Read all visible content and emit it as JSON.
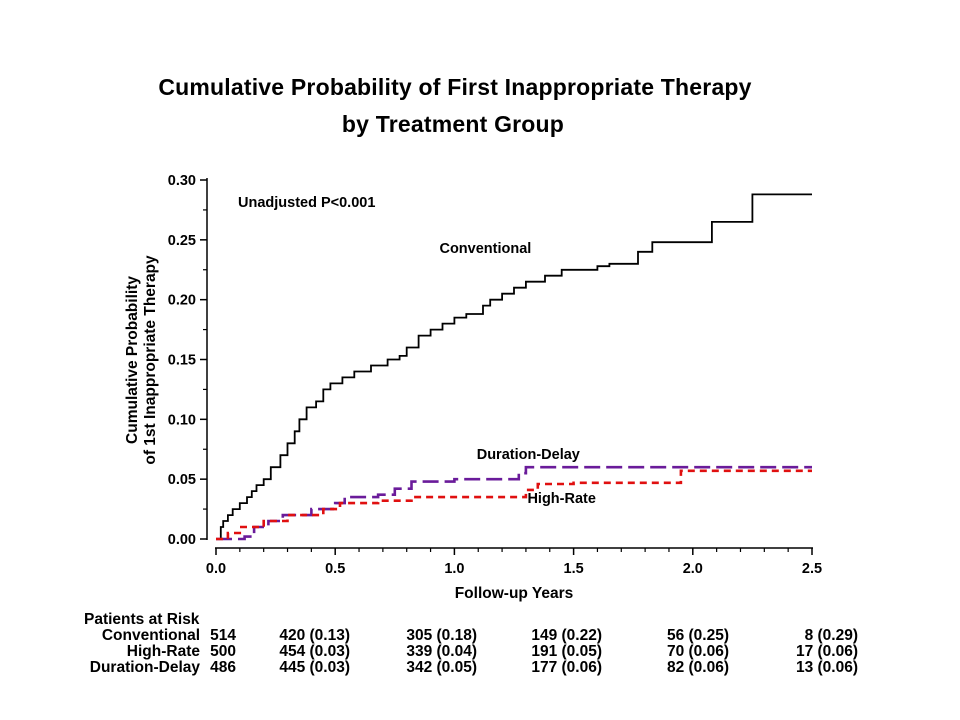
{
  "title_line1": "Cumulative Probability of First Inappropriate Therapy",
  "title_line2": "by Treatment Group",
  "chart_data": {
    "type": "line",
    "step": true,
    "xlabel": "Follow-up Years",
    "ylabel": [
      "Cumulative Probability",
      "of 1st Inappropriate Therapy"
    ],
    "xlim": [
      0.0,
      2.5
    ],
    "ylim": [
      0.0,
      0.3
    ],
    "xticks": [
      "0.0",
      "0.5",
      "1.0",
      "1.5",
      "2.0",
      "2.5"
    ],
    "yticks": [
      "0.00",
      "0.05",
      "0.10",
      "0.15",
      "0.20",
      "0.25",
      "0.30"
    ],
    "grid": false,
    "annotation": "Unadjusted P<0.001",
    "series": [
      {
        "name": "Conventional",
        "color": "#000000",
        "dash": "solid",
        "label_at": [
          1.13,
          0.239
        ],
        "points": [
          [
            0,
            0
          ],
          [
            0.02,
            0.01
          ],
          [
            0.03,
            0.015
          ],
          [
            0.05,
            0.02
          ],
          [
            0.07,
            0.025
          ],
          [
            0.1,
            0.03
          ],
          [
            0.13,
            0.035
          ],
          [
            0.15,
            0.04
          ],
          [
            0.17,
            0.045
          ],
          [
            0.2,
            0.05
          ],
          [
            0.23,
            0.06
          ],
          [
            0.27,
            0.07
          ],
          [
            0.3,
            0.08
          ],
          [
            0.33,
            0.09
          ],
          [
            0.35,
            0.1
          ],
          [
            0.38,
            0.11
          ],
          [
            0.42,
            0.115
          ],
          [
            0.45,
            0.125
          ],
          [
            0.48,
            0.13
          ],
          [
            0.53,
            0.135
          ],
          [
            0.58,
            0.14
          ],
          [
            0.65,
            0.145
          ],
          [
            0.72,
            0.15
          ],
          [
            0.77,
            0.153
          ],
          [
            0.8,
            0.16
          ],
          [
            0.85,
            0.17
          ],
          [
            0.9,
            0.175
          ],
          [
            0.95,
            0.18
          ],
          [
            1.0,
            0.185
          ],
          [
            1.05,
            0.188
          ],
          [
            1.12,
            0.195
          ],
          [
            1.15,
            0.2
          ],
          [
            1.2,
            0.205
          ],
          [
            1.25,
            0.21
          ],
          [
            1.3,
            0.215
          ],
          [
            1.38,
            0.22
          ],
          [
            1.45,
            0.225
          ],
          [
            1.6,
            0.228
          ],
          [
            1.65,
            0.23
          ],
          [
            1.77,
            0.24
          ],
          [
            1.83,
            0.248
          ],
          [
            2.08,
            0.265
          ],
          [
            2.25,
            0.288
          ],
          [
            2.5,
            0.288
          ]
        ]
      },
      {
        "name": "Duration-Delay",
        "color": "#6a1b9a",
        "dash": "long",
        "label_at": [
          1.31,
          0.067
        ],
        "points": [
          [
            0,
            0
          ],
          [
            0.12,
            0.002
          ],
          [
            0.16,
            0.01
          ],
          [
            0.22,
            0.015
          ],
          [
            0.28,
            0.02
          ],
          [
            0.4,
            0.025
          ],
          [
            0.5,
            0.03
          ],
          [
            0.54,
            0.035
          ],
          [
            0.68,
            0.037
          ],
          [
            0.75,
            0.042
          ],
          [
            0.82,
            0.048
          ],
          [
            1.0,
            0.05
          ],
          [
            1.27,
            0.055
          ],
          [
            1.3,
            0.06
          ],
          [
            2.5,
            0.06
          ]
        ]
      },
      {
        "name": "High-Rate",
        "color": "#e01010",
        "dash": "short",
        "label_at": [
          1.45,
          0.03
        ],
        "points": [
          [
            0,
            0
          ],
          [
            0.05,
            0.005
          ],
          [
            0.1,
            0.01
          ],
          [
            0.2,
            0.015
          ],
          [
            0.3,
            0.02
          ],
          [
            0.45,
            0.025
          ],
          [
            0.52,
            0.03
          ],
          [
            0.68,
            0.032
          ],
          [
            0.82,
            0.035
          ],
          [
            1.3,
            0.041
          ],
          [
            1.35,
            0.046
          ],
          [
            1.5,
            0.047
          ],
          [
            1.95,
            0.057
          ],
          [
            2.5,
            0.057
          ]
        ]
      }
    ]
  },
  "risk_table": {
    "header": "Patients at Risk",
    "rows": [
      {
        "label": "Conventional",
        "values": [
          "514",
          "420 (0.13)",
          "305 (0.18)",
          "149 (0.22)",
          "56 (0.25)",
          "8 (0.29)"
        ]
      },
      {
        "label": "High-Rate",
        "values": [
          "500",
          "454 (0.03)",
          "339 (0.04)",
          "191 (0.05)",
          "70 (0.06)",
          "17 (0.06)"
        ]
      },
      {
        "label": "Duration-Delay",
        "values": [
          "486",
          "445 (0.03)",
          "342 (0.05)",
          "177 (0.06)",
          "82 (0.06)",
          "13 (0.06)"
        ]
      }
    ]
  }
}
